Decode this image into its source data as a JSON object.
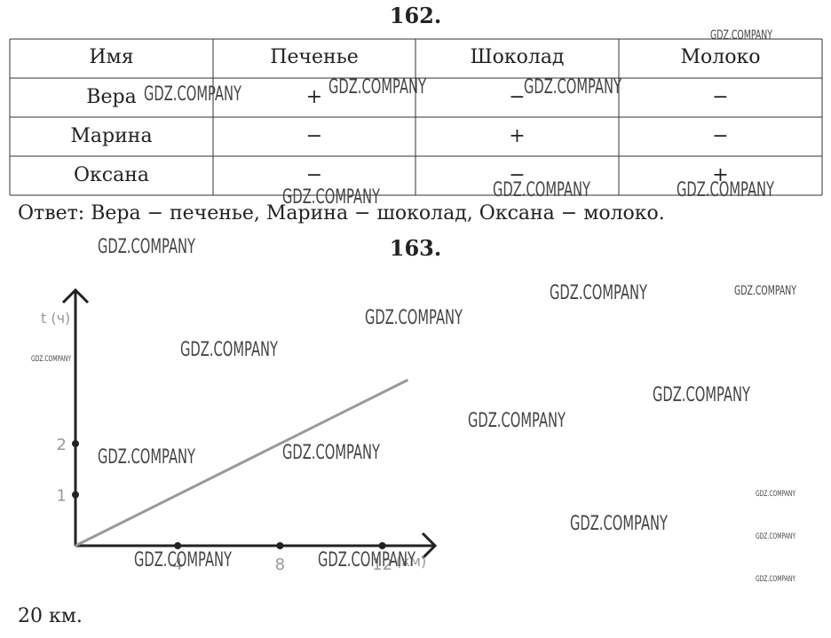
{
  "task1": {
    "number": "162.",
    "table": {
      "header": [
        "Имя",
        "Печенье",
        "Шоколад",
        "Молоко"
      ],
      "rows": [
        [
          "Вера",
          "+",
          "−",
          "−"
        ],
        [
          "Марина",
          "−",
          "+",
          "−"
        ],
        [
          "Оксана",
          "−",
          "−",
          "+"
        ]
      ]
    },
    "answer": "Ответ: Вера − печенье, Марина − шоколад, Оксана − молоко."
  },
  "task2": {
    "number": "163.",
    "graph": {
      "y_label": "t (ч)",
      "x_label": "(км)",
      "xticks": [
        4,
        8,
        12
      ],
      "yticks": [
        1,
        2
      ],
      "line": {
        "x": [
          0,
          13
        ],
        "y": [
          0,
          3.25
        ]
      }
    },
    "answer": "20 км."
  },
  "watermarks": [
    "GDZ.COMPANY",
    "GDZ.COMPANY",
    "GDZ.COMPANY",
    "GDZ.COMPANY",
    "GDZ.COMPANY",
    "GDZ.COMPANY",
    "GDZ.COMPANY",
    "GDZ.COMPANY",
    "GDZ.COMPANY",
    "GDZ.COMPANY",
    "GDZ.COMPANY",
    "GDZ.COMPANY",
    "GDZ.COMPANY",
    "GDZ.COMPANY",
    "GDZ.COMPANY",
    "GDZ.COMPANY",
    "GDZ.COMPANY",
    "GDZ.COMPANY",
    "GDZ.COMPANY",
    "GDZ.COMPANY",
    "GDZ.COMPANY",
    "GDZ.COMPANY",
    "GDZ.COMPANY"
  ]
}
